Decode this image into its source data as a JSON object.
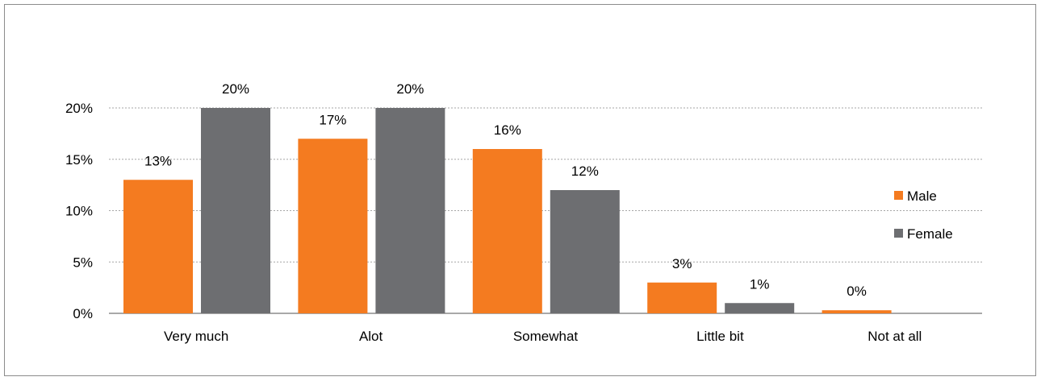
{
  "chart_data": {
    "type": "bar",
    "categories": [
      "Very much",
      "Alot",
      "Somewhat",
      "Little bit",
      "Not at all"
    ],
    "series": [
      {
        "name": "Male",
        "color": "#f47b20",
        "values": [
          13,
          17,
          16,
          3,
          0.3
        ],
        "labels": [
          "13%",
          "17%",
          "16%",
          "3%",
          "0%"
        ]
      },
      {
        "name": "Female",
        "color": "#6d6e71",
        "values": [
          20,
          20,
          12,
          1,
          0
        ],
        "labels": [
          "20%",
          "20%",
          "12%",
          "1%",
          ""
        ]
      }
    ],
    "ylim": [
      0,
      20
    ],
    "yticks": [
      0,
      5,
      10,
      15,
      20
    ],
    "ytick_labels": [
      "0%",
      "5%",
      "10%",
      "15%",
      "20%"
    ],
    "grid": true,
    "legend_position": "right"
  }
}
